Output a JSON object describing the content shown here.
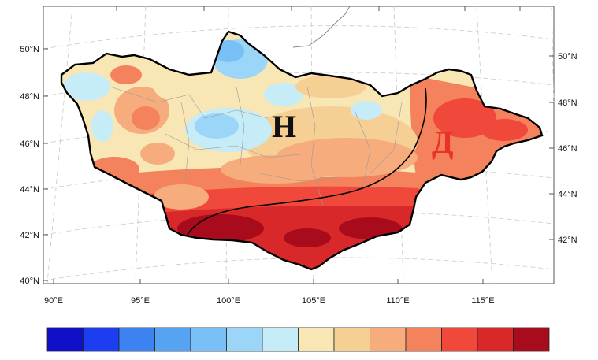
{
  "map": {
    "lat_labels_left": [
      "50°N",
      "48°N",
      "46°N",
      "44°N",
      "42°N",
      "40°N"
    ],
    "lat_labels_right": [
      "50°N",
      "48°N",
      "46°N",
      "44°N",
      "42°N"
    ],
    "lon_labels": [
      "90°E",
      "95°E",
      "100°E",
      "105°E",
      "110°E",
      "115°E"
    ],
    "region_labels": {
      "north": "Н",
      "south": "Д"
    },
    "region_label_colors": {
      "north": "#111111",
      "south": "#e8322a"
    }
  },
  "colorbar": {
    "colors": [
      "#1010c8",
      "#1d3ef0",
      "#3c82f0",
      "#55a3f2",
      "#78c0f6",
      "#9bd6f8",
      "#c6ecf8",
      "#f8e6b4",
      "#f6cf94",
      "#f6ac7c",
      "#f4825c",
      "#f0483a",
      "#d8282a",
      "#a80c1c"
    ]
  },
  "colors": {
    "frame": "#555555",
    "border": "#000000",
    "divider": "#000000"
  }
}
